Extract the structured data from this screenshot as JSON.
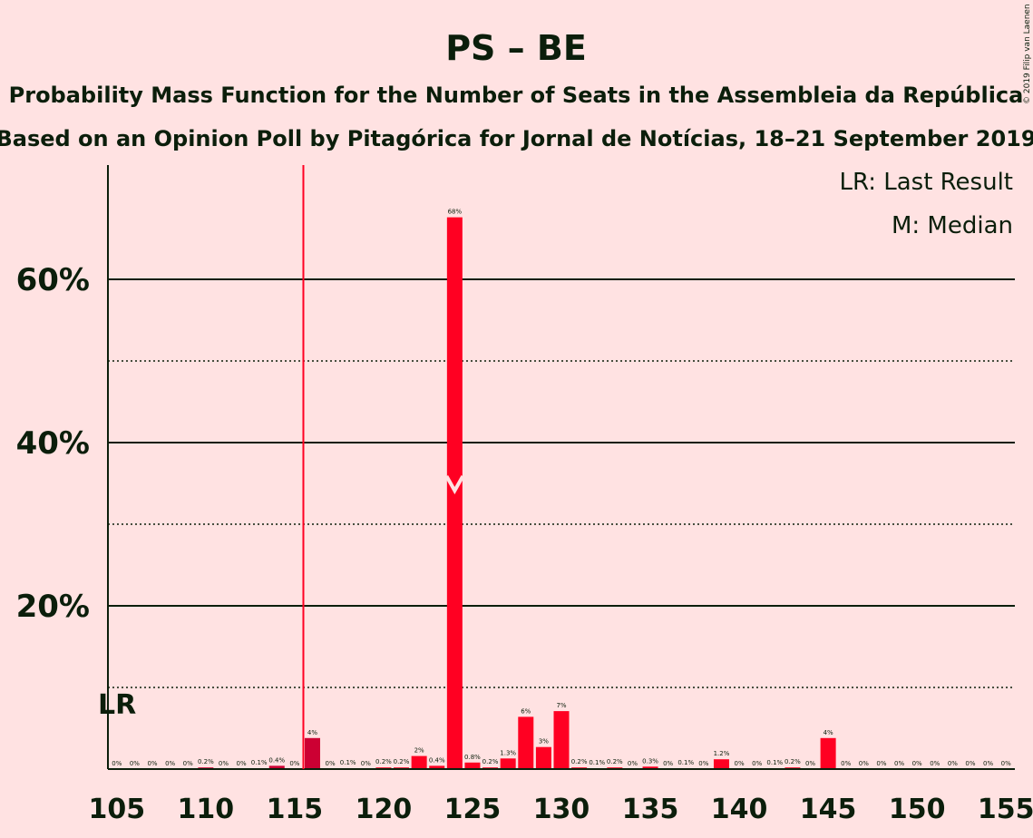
{
  "header": {
    "title": "PS – BE",
    "subtitle1": "Probability Mass Function for the Number of Seats in the Assembleia da República",
    "subtitle2": "Based on an Opinion Poll by Pitagórica for Jornal de Notícias, 18–21 September 2019",
    "copyright": "© 2019 Filip van Laenen"
  },
  "legend": {
    "lr": "LR: Last Result",
    "m": "M: Median"
  },
  "colors": {
    "background": "#FFE2E2",
    "bar_main": "#FF0022",
    "bar_alt": "#CC0033",
    "text": "#0B1E0B",
    "median_mark": "#FFE2E2"
  },
  "chart_data": {
    "type": "bar",
    "x": [
      105,
      106,
      107,
      108,
      109,
      110,
      111,
      112,
      113,
      114,
      115,
      116,
      117,
      118,
      119,
      120,
      121,
      122,
      123,
      124,
      125,
      126,
      127,
      128,
      129,
      130,
      131,
      132,
      133,
      134,
      135,
      136,
      137,
      138,
      139,
      140,
      141,
      142,
      143,
      144,
      145,
      146,
      147,
      148,
      149,
      150,
      151,
      152,
      153,
      154,
      155
    ],
    "values": [
      0,
      0,
      0,
      0,
      0,
      0.2,
      0,
      0,
      0.1,
      0.4,
      0,
      3.8,
      0,
      0.1,
      0,
      0.2,
      0.2,
      1.6,
      0.4,
      67.6,
      0.8,
      0.2,
      1.3,
      6.4,
      2.7,
      7.1,
      0.2,
      0.1,
      0.2,
      0,
      0.3,
      0,
      0.1,
      0,
      1.2,
      0,
      0,
      0.1,
      0.2,
      0,
      3.8,
      0,
      0,
      0,
      0,
      0,
      0,
      0,
      0,
      0,
      0
    ],
    "data_labels": [
      "0%",
      "0%",
      "0%",
      "0%",
      "0%",
      "0.2%",
      "0%",
      "0%",
      "0.1%",
      "0.4%",
      "0%",
      "4%",
      "0%",
      "0.1%",
      "0%",
      "0.2%",
      "0.2%",
      "2%",
      "0.4%",
      "68%",
      "0.8%",
      "0.2%",
      "1.3%",
      "6%",
      "3%",
      "7%",
      "0.2%",
      "0.1%",
      "0.2%",
      "0%",
      "0.3%",
      "0%",
      "0.1%",
      "0%",
      "1.2%",
      "0%",
      "0%",
      "0.1%",
      "0.2%",
      "0%",
      "4%",
      "0%",
      "0%",
      "0%",
      "0%",
      "0%",
      "0%",
      "0%",
      "0%",
      "0%",
      "0%"
    ],
    "xticks": [
      "105",
      "110",
      "115",
      "120",
      "125",
      "130",
      "135",
      "140",
      "145",
      "150",
      "155"
    ],
    "yticks": [
      "20%",
      "40%",
      "60%"
    ],
    "ylim": [
      0,
      73
    ],
    "xlim": [
      104.5,
      155.5
    ],
    "last_result": 116,
    "last_result_label": "LR",
    "median": 124,
    "grid": {
      "solid": [
        20,
        40,
        60
      ],
      "dotted": [
        10,
        30,
        50
      ]
    }
  }
}
